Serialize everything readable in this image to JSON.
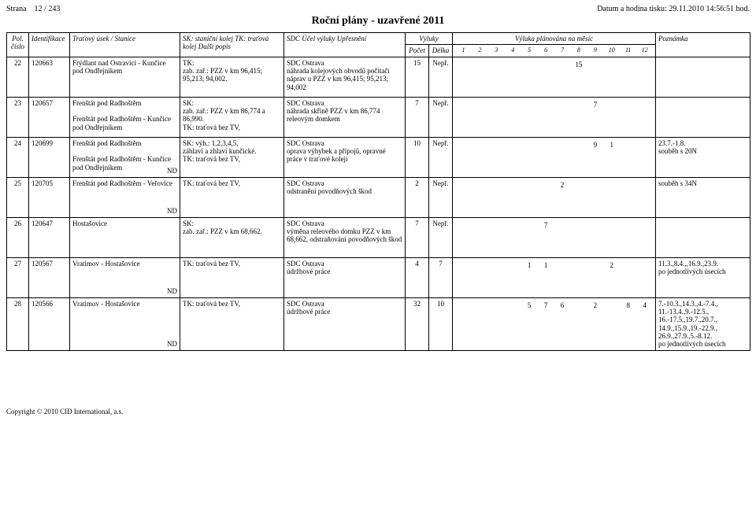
{
  "header": {
    "page_label": "Strana",
    "page_value": "12 / 243",
    "printed_label": "Datum a hodina tisku:",
    "printed_value": "29.11.2010  14:56:51 hod."
  },
  "title": "Roční plány - uzavřené  2011",
  "columns": {
    "pol": "Pol. číslo",
    "ident": "Identifikace",
    "trat": "Traťový úsek / Stanice",
    "kolej": "SK: staniční kolej\nTK: traťová kolej\nDalší popis",
    "sdc": "SDC\nÚčel výluky\nUpřesnění",
    "vyluky": "Výluky",
    "pocet": "Počet",
    "delka": "Délka",
    "plan": "Výluka plánována na měsíc",
    "months": [
      "1",
      "2",
      "3",
      "4",
      "5",
      "6",
      "7",
      "8",
      "9",
      "10",
      "11",
      "12"
    ],
    "pozn": "Poznámka"
  },
  "rows": [
    {
      "pol": "22",
      "ident": "120663",
      "trat": "Frýdlant nad Ostravicí - Kunčice pod Ondřejníkem",
      "kolej": "TK:\nzab. zař.: PZZ v km 96,415; 95,213; 94,002.",
      "sdc": "SDC Ostrava\nnáhrada kolejových obvodů počítači náprav u PZZ v km 96,415; 95,213; 94,002",
      "pocet": "15",
      "delka": "Nepř.",
      "m": [
        "",
        "",
        "",
        "",
        "",
        "",
        "",
        "15",
        "",
        "",
        "",
        ""
      ],
      "pozn": "",
      "nd": false
    },
    {
      "pol": "23",
      "ident": "120657",
      "trat": "Frenštát pod Radhoštěm\n\nFrenštát pod Radhoštěm - Kunčice pod Ondřejníkem",
      "kolej": "SK:\nzab. zař.: PZZ v km 86,774 a 86,990.\nTK: traťová bez TV,",
      "sdc": "SDC Ostrava\nnáhrada skříně PZZ v km 86,774 releovým domkem",
      "pocet": "7",
      "delka": "Nepř.",
      "m": [
        "",
        "",
        "",
        "",
        "",
        "",
        "",
        "",
        "7",
        "",
        "",
        ""
      ],
      "pozn": "",
      "nd": false
    },
    {
      "pol": "24",
      "ident": "120699",
      "trat": "Frenštát pod Radhoštěm\n\nFrenštát pod Radhoštěm - Kunčice pod Ondřejníkem",
      "kolej": "SK: výh.: 1,2,3,4,5,\nzáhlaví a zhlaví kunčické.\nTK: traťová bez TV,",
      "sdc": "SDC Ostrava\noprava výhybek a přípojů, opravné práce v traťové koleji",
      "pocet": "10",
      "delka": "Nepř.",
      "m": [
        "",
        "",
        "",
        "",
        "",
        "",
        "",
        "",
        "9",
        "1",
        "",
        ""
      ],
      "pozn": "23.7.-1.8.\nsouběh s 20N",
      "nd": true
    },
    {
      "pol": "25",
      "ident": "120705",
      "trat": "Frenštát pod Radhoštěm - Veřovice",
      "kolej": "TK: traťová bez TV,",
      "sdc": "SDC Ostrava\nodstranění povodňových škod",
      "pocet": "2",
      "delka": "Nepř.",
      "m": [
        "",
        "",
        "",
        "",
        "",
        "",
        "2",
        "",
        "",
        "",
        "",
        ""
      ],
      "pozn": "souběh s 34N",
      "nd": true
    },
    {
      "pol": "26",
      "ident": "120647",
      "trat": "Hostašovice",
      "kolej": "SK:\nzab. zař.: PZZ v km 68,662.",
      "sdc": "SDC Ostrava\nvýměna releového domku PZZ v km 68,662, odstraňování povodňových škod",
      "pocet": "7",
      "delka": "Nepř.",
      "m": [
        "",
        "",
        "",
        "",
        "",
        "7",
        "",
        "",
        "",
        "",
        "",
        ""
      ],
      "pozn": "",
      "nd": false
    },
    {
      "pol": "27",
      "ident": "120567",
      "trat": "Vratimov - Hostašovice",
      "kolej": "TK: traťová bez TV,",
      "sdc": "SDC Ostrava\núdržbové práce",
      "pocet": "4",
      "delka": "7",
      "m": [
        "",
        "",
        "",
        "",
        "1",
        "1",
        "",
        "",
        "",
        "2",
        "",
        ""
      ],
      "pozn": "11.3.,8.4.,,16.9.,23.9.\npo jednotlivých úsecích",
      "nd": true
    },
    {
      "pol": "28",
      "ident": "120566",
      "trat": "Vratimov - Hostašovice",
      "kolej": "TK: traťová bez TV,",
      "sdc": "SDC Ostrava\núdržbové práce",
      "pocet": "32",
      "delka": "10",
      "m": [
        "",
        "",
        "",
        "",
        "5",
        "7",
        "6",
        "",
        "2",
        "",
        "8",
        "4"
      ],
      "pozn": "7.-10.3.,14.3.,4.-7.4., 11.-13.4.,9.-12.5., 16.-17.5.,19.7.,20.7., 14.9.,15.9.,19.-22.9., 26.9.,27.9.,5.-8.12.\npo jednotlivých úsecích",
      "nd": true
    }
  ],
  "footer": "Copyright © 2010 CID International, a.s."
}
